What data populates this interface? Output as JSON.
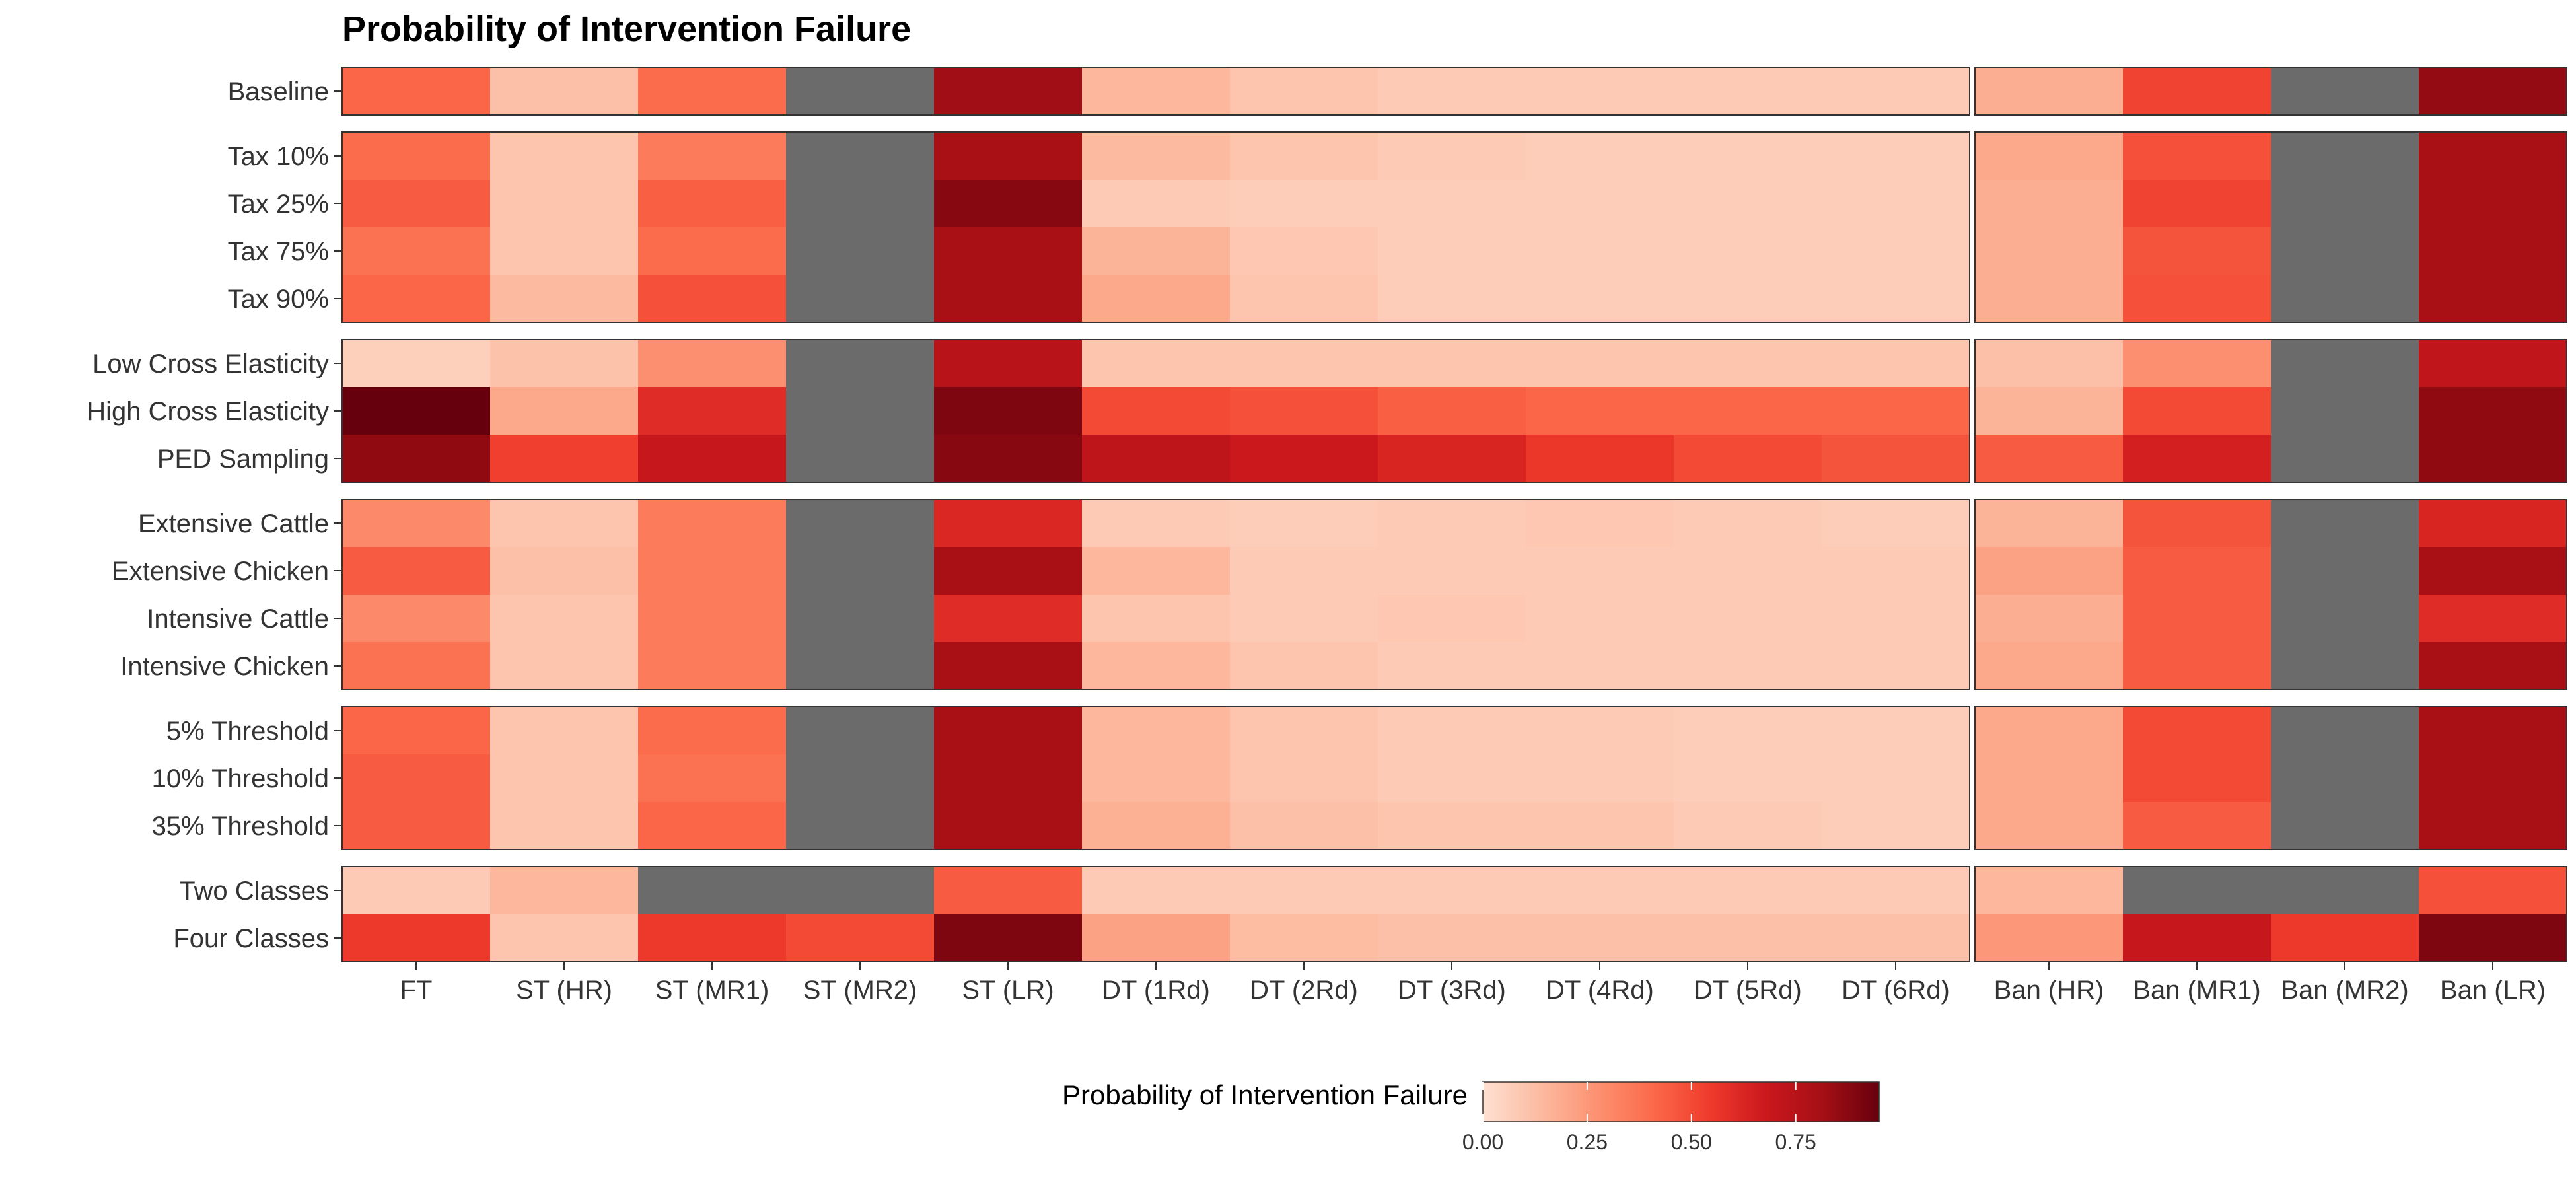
{
  "chart_data": {
    "type": "heatmap",
    "title": "Probability of Intervention Failure",
    "legend": {
      "title": "Probability of Intervention Failure",
      "ticks": [
        "0.00",
        "0.25",
        "0.50",
        "0.75"
      ],
      "tick_values": [
        0,
        0.25,
        0.5,
        0.75
      ],
      "range": [
        0,
        0.95
      ],
      "placement": "bottom",
      "colors": [
        "#fee0d2",
        "#fcbba1",
        "#fc9272",
        "#fb6a4a",
        "#ef3b2c",
        "#cb181d",
        "#a50f15",
        "#67000d"
      ]
    },
    "missing_color": "#6b6b6b",
    "panels": [
      {
        "columns": [
          "FT",
          "ST (HR)",
          "ST (MR1)",
          "ST (MR2)",
          "ST (LR)",
          "DT (1Rd)",
          "DT (2Rd)",
          "DT (3Rd)",
          "DT (4Rd)",
          "DT (5Rd)",
          "DT (6Rd)"
        ]
      },
      {
        "columns": [
          "Ban (HR)",
          "Ban (MR1)",
          "Ban (MR2)",
          "Ban (LR)"
        ]
      }
    ],
    "row_groups": [
      {
        "rows": [
          {
            "label": "Baseline",
            "values": [
              [
                0.42,
                0.12,
                0.4,
                null,
                0.82,
                0.15,
                0.1,
                0.08,
                0.08,
                0.08,
                0.08
              ],
              [
                0.18,
                0.52,
                null,
                0.85
              ]
            ]
          }
        ]
      },
      {
        "rows": [
          {
            "label": "Tax 10%",
            "values": [
              [
                0.4,
                0.1,
                0.35,
                null,
                0.8,
                0.14,
                0.1,
                0.08,
                0.07,
                0.07,
                0.07
              ],
              [
                0.2,
                0.48,
                null,
                0.8
              ]
            ]
          },
          {
            "label": "Tax 25%",
            "values": [
              [
                0.45,
                0.1,
                0.44,
                null,
                0.88,
                0.08,
                0.07,
                0.07,
                0.07,
                0.07,
                0.07
              ],
              [
                0.18,
                0.52,
                null,
                0.8
              ]
            ]
          },
          {
            "label": "Tax 75%",
            "values": [
              [
                0.38,
                0.1,
                0.4,
                null,
                0.8,
                0.16,
                0.09,
                0.07,
                0.07,
                0.07,
                0.07
              ],
              [
                0.18,
                0.47,
                null,
                0.8
              ]
            ]
          },
          {
            "label": "Tax 90%",
            "values": [
              [
                0.42,
                0.14,
                0.48,
                null,
                0.8,
                0.2,
                0.1,
                0.07,
                0.07,
                0.07,
                0.07
              ],
              [
                0.18,
                0.48,
                null,
                0.8
              ]
            ]
          }
        ]
      },
      {
        "rows": [
          {
            "label": "Low Cross Elasticity",
            "values": [
              [
                0.06,
                0.11,
                0.28,
                null,
                0.75,
                0.1,
                0.1,
                0.1,
                0.1,
                0.1,
                0.1
              ],
              [
                0.12,
                0.28,
                null,
                0.72
              ]
            ]
          },
          {
            "label": "High Cross Elasticity",
            "values": [
              [
                0.95,
                0.2,
                0.6,
                null,
                0.9,
                0.5,
                0.48,
                0.44,
                0.42,
                0.42,
                0.42
              ],
              [
                0.16,
                0.5,
                null,
                0.86
              ]
            ]
          },
          {
            "label": "PED Sampling",
            "values": [
              [
                0.86,
                0.53,
                0.7,
                null,
                0.88,
                0.73,
                0.68,
                0.63,
                0.56,
                0.5,
                0.47
              ],
              [
                0.45,
                0.65,
                null,
                0.86
              ]
            ]
          }
        ]
      },
      {
        "rows": [
          {
            "label": "Extensive Cattle",
            "values": [
              [
                0.3,
                0.1,
                0.35,
                null,
                0.62,
                0.08,
                0.07,
                0.08,
                0.09,
                0.08,
                0.07
              ],
              [
                0.16,
                0.47,
                null,
                0.63
              ]
            ]
          },
          {
            "label": "Extensive Chicken",
            "values": [
              [
                0.45,
                0.12,
                0.35,
                null,
                0.8,
                0.15,
                0.08,
                0.08,
                0.08,
                0.08,
                0.08
              ],
              [
                0.22,
                0.45,
                null,
                0.8
              ]
            ]
          },
          {
            "label": "Intensive Cattle",
            "values": [
              [
                0.3,
                0.1,
                0.35,
                null,
                0.6,
                0.1,
                0.08,
                0.09,
                0.08,
                0.08,
                0.08
              ],
              [
                0.18,
                0.45,
                null,
                0.6
              ]
            ]
          },
          {
            "label": "Intensive Chicken",
            "values": [
              [
                0.38,
                0.1,
                0.35,
                null,
                0.8,
                0.15,
                0.1,
                0.08,
                0.08,
                0.08,
                0.08
              ],
              [
                0.2,
                0.45,
                null,
                0.8
              ]
            ]
          }
        ]
      },
      {
        "rows": [
          {
            "label": "5% Threshold",
            "values": [
              [
                0.42,
                0.1,
                0.4,
                null,
                0.8,
                0.15,
                0.1,
                0.08,
                0.08,
                0.07,
                0.07
              ],
              [
                0.2,
                0.5,
                null,
                0.8
              ]
            ]
          },
          {
            "label": "10% Threshold",
            "values": [
              [
                0.45,
                0.1,
                0.38,
                null,
                0.8,
                0.15,
                0.1,
                0.08,
                0.08,
                0.07,
                0.07
              ],
              [
                0.2,
                0.5,
                null,
                0.8
              ]
            ]
          },
          {
            "label": "35% Threshold",
            "values": [
              [
                0.45,
                0.1,
                0.42,
                null,
                0.8,
                0.17,
                0.12,
                0.1,
                0.1,
                0.08,
                0.07
              ],
              [
                0.2,
                0.45,
                null,
                0.8
              ]
            ]
          }
        ]
      },
      {
        "rows": [
          {
            "label": "Two Classes",
            "values": [
              [
                0.08,
                0.15,
                null,
                null,
                0.45,
                0.08,
                0.08,
                0.08,
                0.08,
                0.08,
                0.08
              ],
              [
                0.15,
                null,
                null,
                0.48
              ]
            ]
          },
          {
            "label": "Four Classes",
            "values": [
              [
                0.55,
                0.1,
                0.55,
                0.5,
                0.9,
                0.22,
                0.13,
                0.12,
                0.12,
                0.12,
                0.12
              ],
              [
                0.25,
                0.7,
                0.55,
                0.9
              ]
            ]
          }
        ]
      }
    ]
  }
}
